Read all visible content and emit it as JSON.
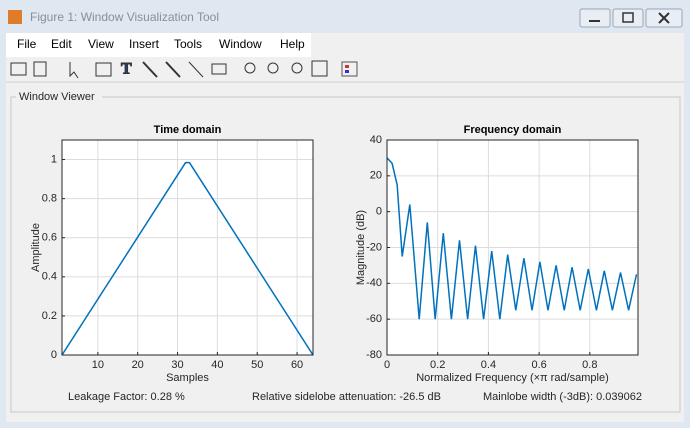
{
  "window": {
    "title": "Figure 1: Window Visualization Tool"
  },
  "menu": [
    "File",
    "Edit",
    "View",
    "Insert",
    "Tools",
    "Window",
    "Help"
  ],
  "panel": {
    "title": "Window Viewer"
  },
  "chart_data": [
    {
      "type": "line",
      "title": "Time domain",
      "xlabel": "Samples",
      "ylabel": "Amplitude",
      "x": [
        1,
        32,
        33,
        64
      ],
      "values": [
        0,
        0.984,
        0.984,
        0
      ],
      "color": "#0072bd",
      "xlim": [
        1,
        64
      ],
      "xticks": [
        10,
        20,
        30,
        40,
        50,
        60
      ],
      "ylim": [
        0,
        1.1
      ],
      "yticks": [
        0,
        0.2,
        0.4,
        0.6,
        0.8,
        1
      ],
      "grid": true
    },
    {
      "type": "line",
      "title": "Frequency domain",
      "xlabel": "Normalized Frequency  (×π rad/sample)",
      "ylabel": "Magnitude (dB)",
      "x": [
        0,
        0.02,
        0.04,
        0.06,
        0.09,
        0.127,
        0.159,
        0.19,
        0.222,
        0.254,
        0.286,
        0.318,
        0.349,
        0.381,
        0.413,
        0.445,
        0.476,
        0.508,
        0.54,
        0.572,
        0.603,
        0.635,
        0.667,
        0.699,
        0.73,
        0.762,
        0.794,
        0.826,
        0.857,
        0.889,
        0.921,
        0.953,
        0.984
      ],
      "values": [
        30,
        27,
        15,
        -25,
        4,
        -60,
        -6,
        -60,
        -12,
        -60,
        -16,
        -60,
        -19,
        -60,
        -22,
        -60,
        -24,
        -55,
        -26,
        -55,
        -28,
        -55,
        -30,
        -55,
        -31,
        -55,
        -32,
        -55,
        -33,
        -55,
        -34,
        -55,
        -35
      ],
      "color": "#0072bd",
      "xlim": [
        0,
        0.99
      ],
      "xticks": [
        0,
        0.2,
        0.4,
        0.6,
        0.8
      ],
      "ylim": [
        -80,
        40
      ],
      "yticks": [
        -80,
        -60,
        -40,
        -20,
        0,
        20,
        40
      ],
      "grid": true
    }
  ],
  "status": [
    "Leakage Factor: 0.28 %",
    "Relative sidelobe attenuation: -26.5 dB",
    "Mainlobe width (-3dB): 0.039062"
  ]
}
